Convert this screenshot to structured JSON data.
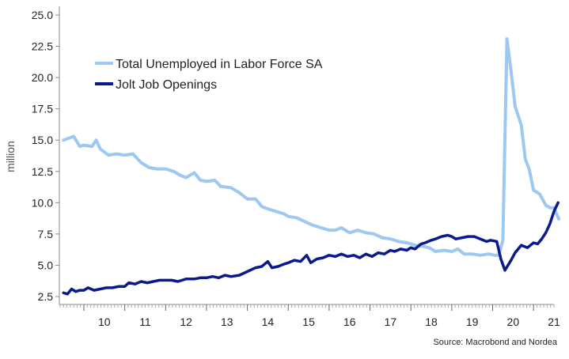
{
  "chart_data": {
    "type": "line",
    "ylabel": "million",
    "ylim": [
      2.5,
      25.0
    ],
    "yticks": [
      "25.0",
      "22.5",
      "20.0",
      "17.5",
      "15.0",
      "12.5",
      "10.0",
      "7.5",
      "5.0",
      "2.5"
    ],
    "xlim": [
      2009.4,
      2021.5
    ],
    "xticks": [
      "10",
      "11",
      "12",
      "13",
      "14",
      "15",
      "16",
      "17",
      "18",
      "19",
      "20",
      "21"
    ],
    "grid": false,
    "legend_position": "top-left",
    "source": "Source: Macrobond and Nordea",
    "series": [
      {
        "name": "Total Unemployed in Labor Force SA",
        "color": "#9cc8f2",
        "points": [
          [
            2009.5,
            15.0
          ],
          [
            2009.75,
            15.3
          ],
          [
            2009.9,
            14.5
          ],
          [
            2010.0,
            14.6
          ],
          [
            2010.2,
            14.5
          ],
          [
            2010.3,
            15.0
          ],
          [
            2010.4,
            14.3
          ],
          [
            2010.6,
            13.8
          ],
          [
            2010.8,
            13.9
          ],
          [
            2011.0,
            13.8
          ],
          [
            2011.2,
            13.9
          ],
          [
            2011.4,
            13.2
          ],
          [
            2011.6,
            12.8
          ],
          [
            2011.8,
            12.7
          ],
          [
            2012.0,
            12.7
          ],
          [
            2012.2,
            12.5
          ],
          [
            2012.35,
            12.2
          ],
          [
            2012.5,
            12.0
          ],
          [
            2012.7,
            12.4
          ],
          [
            2012.85,
            11.8
          ],
          [
            2013.0,
            11.7
          ],
          [
            2013.2,
            11.8
          ],
          [
            2013.35,
            11.3
          ],
          [
            2013.6,
            11.2
          ],
          [
            2013.8,
            10.8
          ],
          [
            2014.0,
            10.3
          ],
          [
            2014.2,
            10.3
          ],
          [
            2014.35,
            9.7
          ],
          [
            2014.5,
            9.5
          ],
          [
            2014.7,
            9.3
          ],
          [
            2014.9,
            9.1
          ],
          [
            2015.0,
            8.9
          ],
          [
            2015.2,
            8.8
          ],
          [
            2015.4,
            8.5
          ],
          [
            2015.6,
            8.2
          ],
          [
            2015.8,
            8.0
          ],
          [
            2016.0,
            7.8
          ],
          [
            2016.15,
            7.8
          ],
          [
            2016.3,
            8.0
          ],
          [
            2016.5,
            7.6
          ],
          [
            2016.7,
            7.8
          ],
          [
            2016.9,
            7.6
          ],
          [
            2017.1,
            7.5
          ],
          [
            2017.3,
            7.2
          ],
          [
            2017.5,
            7.1
          ],
          [
            2017.7,
            6.9
          ],
          [
            2017.9,
            6.8
          ],
          [
            2018.1,
            6.6
          ],
          [
            2018.3,
            6.5
          ],
          [
            2018.45,
            6.4
          ],
          [
            2018.6,
            6.1
          ],
          [
            2018.8,
            6.2
          ],
          [
            2019.0,
            6.1
          ],
          [
            2019.15,
            6.3
          ],
          [
            2019.3,
            5.9
          ],
          [
            2019.5,
            5.9
          ],
          [
            2019.7,
            5.8
          ],
          [
            2019.9,
            5.9
          ],
          [
            2020.05,
            5.8
          ],
          [
            2020.15,
            5.8
          ],
          [
            2020.25,
            7.0
          ],
          [
            2020.35,
            23.1
          ],
          [
            2020.45,
            20.5
          ],
          [
            2020.55,
            17.7
          ],
          [
            2020.7,
            16.2
          ],
          [
            2020.8,
            13.5
          ],
          [
            2020.9,
            12.6
          ],
          [
            2021.0,
            11.0
          ],
          [
            2021.15,
            10.7
          ],
          [
            2021.3,
            9.8
          ],
          [
            2021.4,
            9.6
          ],
          [
            2021.5,
            9.6
          ],
          [
            2021.55,
            9.2
          ],
          [
            2021.62,
            8.7
          ]
        ]
      },
      {
        "name": "Jolt Job Openings",
        "color": "#0a1a8c",
        "points": [
          [
            2009.5,
            2.8
          ],
          [
            2009.6,
            2.7
          ],
          [
            2009.7,
            3.1
          ],
          [
            2009.8,
            2.9
          ],
          [
            2009.9,
            3.0
          ],
          [
            2010.0,
            3.0
          ],
          [
            2010.1,
            3.2
          ],
          [
            2010.25,
            3.0
          ],
          [
            2010.4,
            3.1
          ],
          [
            2010.55,
            3.2
          ],
          [
            2010.7,
            3.2
          ],
          [
            2010.85,
            3.3
          ],
          [
            2011.0,
            3.3
          ],
          [
            2011.1,
            3.6
          ],
          [
            2011.25,
            3.5
          ],
          [
            2011.4,
            3.7
          ],
          [
            2011.55,
            3.6
          ],
          [
            2011.7,
            3.7
          ],
          [
            2011.85,
            3.8
          ],
          [
            2012.0,
            3.8
          ],
          [
            2012.15,
            3.8
          ],
          [
            2012.3,
            3.7
          ],
          [
            2012.5,
            3.9
          ],
          [
            2012.7,
            3.9
          ],
          [
            2012.85,
            4.0
          ],
          [
            2013.0,
            4.0
          ],
          [
            2013.15,
            4.1
          ],
          [
            2013.3,
            4.0
          ],
          [
            2013.45,
            4.2
          ],
          [
            2013.6,
            4.1
          ],
          [
            2013.8,
            4.2
          ],
          [
            2014.0,
            4.5
          ],
          [
            2014.2,
            4.8
          ],
          [
            2014.35,
            4.9
          ],
          [
            2014.5,
            5.3
          ],
          [
            2014.6,
            4.8
          ],
          [
            2014.75,
            4.9
          ],
          [
            2014.9,
            5.1
          ],
          [
            2015.0,
            5.2
          ],
          [
            2015.15,
            5.4
          ],
          [
            2015.3,
            5.3
          ],
          [
            2015.45,
            5.8
          ],
          [
            2015.55,
            5.2
          ],
          [
            2015.7,
            5.5
          ],
          [
            2015.85,
            5.6
          ],
          [
            2016.0,
            5.8
          ],
          [
            2016.15,
            5.7
          ],
          [
            2016.3,
            5.9
          ],
          [
            2016.45,
            5.7
          ],
          [
            2016.6,
            5.8
          ],
          [
            2016.75,
            5.6
          ],
          [
            2016.9,
            5.9
          ],
          [
            2017.05,
            5.7
          ],
          [
            2017.2,
            6.0
          ],
          [
            2017.35,
            5.9
          ],
          [
            2017.5,
            6.2
          ],
          [
            2017.6,
            6.1
          ],
          [
            2017.75,
            6.3
          ],
          [
            2017.9,
            6.2
          ],
          [
            2018.0,
            6.4
          ],
          [
            2018.1,
            6.3
          ],
          [
            2018.25,
            6.7
          ],
          [
            2018.35,
            6.8
          ],
          [
            2018.5,
            7.0
          ],
          [
            2018.6,
            7.1
          ],
          [
            2018.75,
            7.3
          ],
          [
            2018.9,
            7.4
          ],
          [
            2019.0,
            7.3
          ],
          [
            2019.1,
            7.1
          ],
          [
            2019.25,
            7.2
          ],
          [
            2019.4,
            7.3
          ],
          [
            2019.55,
            7.3
          ],
          [
            2019.7,
            7.1
          ],
          [
            2019.85,
            6.9
          ],
          [
            2019.95,
            7.0
          ],
          [
            2020.1,
            6.9
          ],
          [
            2020.2,
            5.5
          ],
          [
            2020.3,
            4.6
          ],
          [
            2020.45,
            5.4
          ],
          [
            2020.55,
            6.0
          ],
          [
            2020.7,
            6.6
          ],
          [
            2020.85,
            6.4
          ],
          [
            2021.0,
            6.8
          ],
          [
            2021.1,
            6.7
          ],
          [
            2021.2,
            7.1
          ],
          [
            2021.3,
            7.6
          ],
          [
            2021.4,
            8.3
          ],
          [
            2021.5,
            9.3
          ],
          [
            2021.6,
            10.0
          ]
        ]
      }
    ]
  }
}
